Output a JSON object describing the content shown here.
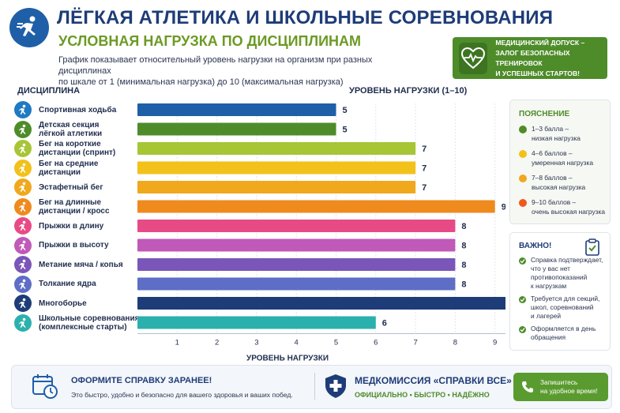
{
  "header": {
    "title": "ЛЁГКАЯ АТЛЕТИКА И ШКОЛЬНЫЕ СОРЕВНОВАНИЯ",
    "subtitle": "УСЛОВНАЯ НАГРУЗКА ПО ДИСЦИПЛИНАМ",
    "description_line1": "График показывает относительный уровень нагрузки на организм при разных дисциплинах",
    "description_line2": "по шкале от 1 (минимальная нагрузка) до 10 (максимальная нагрузка)",
    "logo_icon": "runner-icon"
  },
  "med_badge": {
    "line1": "МЕДИЦИНСКИЙ ДОПУСК –",
    "line2": "ЗАЛОГ БЕЗОПАСНЫХ ТРЕНИРОВОК",
    "line3": "И УСПЕШНЫХ СТАРТОВ!",
    "icon": "heart-pulse-icon"
  },
  "columns": {
    "discipline": "ДИСЦИПЛИНА",
    "load": "УРОВЕНЬ НАГРУЗКИ (1–10)"
  },
  "chart_data": {
    "type": "bar",
    "orientation": "horizontal",
    "xlabel": "УРОВЕНЬ НАГРУЗКИ",
    "xlim": [
      0,
      10
    ],
    "xticks": [
      1,
      2,
      3,
      4,
      5,
      6,
      7,
      8,
      9,
      10
    ],
    "categories": [
      {
        "line1": "Спортивная ходьба",
        "line2": ""
      },
      {
        "line1": "Детская секция",
        "line2": "лёгкой атлетики"
      },
      {
        "line1": "Бег на короткие",
        "line2": "дистанции (спринт)"
      },
      {
        "line1": "Бег на средние",
        "line2": "дистанции"
      },
      {
        "line1": "Эстафетный бег",
        "line2": ""
      },
      {
        "line1": "Бег на длинные",
        "line2": "дистанции / кросс"
      },
      {
        "line1": "Прыжки в длину",
        "line2": ""
      },
      {
        "line1": "Прыжки в высоту",
        "line2": ""
      },
      {
        "line1": "Метание мяча / копья",
        "line2": ""
      },
      {
        "line1": "Толкание ядра",
        "line2": ""
      },
      {
        "line1": "Многоборье",
        "line2": ""
      },
      {
        "line1": "Школьные соревнования",
        "line2": "(комплексные старты)"
      }
    ],
    "values": [
      5,
      5,
      7,
      7,
      7,
      9,
      8,
      8,
      8,
      8,
      10,
      6
    ],
    "bar_colors": [
      "#1f5fa8",
      "#4e8c2a",
      "#a6c635",
      "#f2c11a",
      "#f0a81d",
      "#ef8a1e",
      "#e74b86",
      "#c159b8",
      "#7a56b8",
      "#5e6ec6",
      "#1e3c78",
      "#2bb1ad"
    ],
    "icon_colors": [
      "#1f7ac4",
      "#4e8c2a",
      "#a6c635",
      "#f2c11a",
      "#f0a81d",
      "#ef8a1e",
      "#e74b86",
      "#c159b8",
      "#7a56b8",
      "#5e6ec6",
      "#1e3c78",
      "#2bb1ad"
    ],
    "grid": true
  },
  "legend": {
    "title": "ПОЯСНЕНИЕ",
    "items": [
      {
        "line1": "1–3 балла –",
        "line2": "низкая нагрузка",
        "color": "#4e8c2a"
      },
      {
        "line1": "4–6 баллов –",
        "line2": "умеренная нагрузка",
        "color": "#f2c11a"
      },
      {
        "line1": "7–8 баллов –",
        "line2": "высокая нагрузка",
        "color": "#f0a81d"
      },
      {
        "line1": "9–10 баллов –",
        "line2": "очень высокая нагрузка",
        "color": "#ef5a1e"
      }
    ]
  },
  "important": {
    "title": "ВАЖНО!",
    "icon": "clipboard-check-icon",
    "items": [
      {
        "l1": "Справка подтверждает,",
        "l2": "что у вас нет",
        "l3": "противопоказаний",
        "l4": "к нагрузкам"
      },
      {
        "l1": "Требуется для секций,",
        "l2": "школ, соревнований",
        "l3": "и лагерей",
        "l4": ""
      },
      {
        "l1": "Оформляется в день",
        "l2": "обращения",
        "l3": "",
        "l4": ""
      }
    ]
  },
  "footer": {
    "cta_title": "ОФОРМИТЕ СПРАВКУ ЗАРАНЕЕ!",
    "cta_text": "Это быстро, удобно и безопасно для вашего здоровья и ваших побед.",
    "brand_title": "МЕДКОМИССИЯ «СПРАВКИ ВСЕ»",
    "brand_tag": "ОФИЦИАЛЬНО • БЫСТРО • НАДЁЖНО",
    "button_line1": "Запишитесь",
    "button_line2": "на удобное время!"
  }
}
